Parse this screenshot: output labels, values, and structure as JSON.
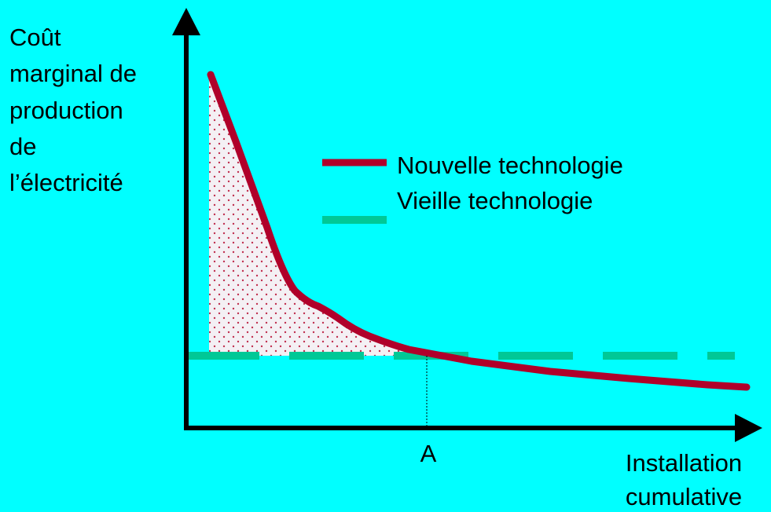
{
  "y_axis_label": [
    "Coût",
    "marginal de",
    "production",
    "de",
    "l’électricité"
  ],
  "legend": [
    "Nouvelle technologie",
    "Vieille technologie"
  ],
  "point_label": "A",
  "x_axis_label": [
    "Installation",
    "cumulative"
  ]
}
